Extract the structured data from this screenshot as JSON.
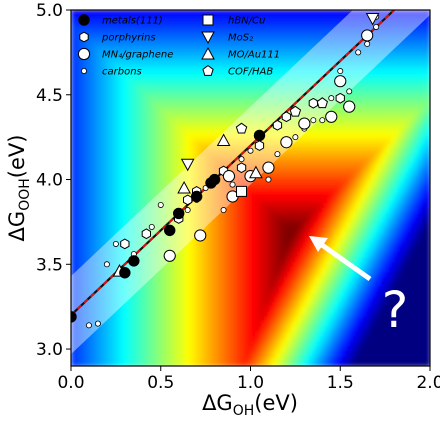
{
  "chart_data": {
    "type": "scatter",
    "xlabel": {
      "main": "ΔG",
      "sub": "OH",
      "unit": "(eV)"
    },
    "ylabel": {
      "main": "ΔG",
      "sub": "OOH",
      "unit": "(eV)"
    },
    "xlim": [
      0.0,
      2.0
    ],
    "ylim": [
      2.9,
      5.0
    ],
    "xticks": [
      "0.0",
      "0.5",
      "1.0",
      "1.5",
      "2.0"
    ],
    "yticks": [
      "3.0",
      "3.5",
      "4.0",
      "4.5",
      "5.0"
    ],
    "annotation": "?",
    "scaling_line": {
      "slope": 1.0,
      "intercept": 3.2
    },
    "legend": [
      {
        "label": "metals(111)",
        "marker": "filled-circle"
      },
      {
        "label": "porphyrins",
        "marker": "hexagon"
      },
      {
        "label": "MN₄/graphene",
        "marker": "large-circle"
      },
      {
        "label": "carbons",
        "marker": "small-circle"
      },
      {
        "label": "hBN/Cu",
        "marker": "square"
      },
      {
        "label": "MoS₂",
        "marker": "down-triangle"
      },
      {
        "label": "MO/Au111",
        "marker": "up-triangle"
      },
      {
        "label": "COF/HAB",
        "marker": "pentagon"
      }
    ],
    "series": [
      {
        "name": "metals(111)",
        "marker": "filled-circle",
        "points": [
          [
            0.0,
            3.19
          ],
          [
            0.3,
            3.45
          ],
          [
            0.35,
            3.52
          ],
          [
            0.6,
            3.8
          ],
          [
            0.7,
            3.9
          ],
          [
            0.78,
            3.98
          ],
          [
            1.05,
            4.26
          ],
          [
            0.55,
            3.7
          ],
          [
            0.8,
            4.0
          ]
        ]
      },
      {
        "name": "porphyrins",
        "marker": "hexagon",
        "points": [
          [
            0.3,
            3.62
          ],
          [
            0.42,
            3.68
          ],
          [
            0.6,
            3.77
          ],
          [
            0.65,
            3.88
          ],
          [
            0.85,
            4.05
          ],
          [
            0.95,
            4.07
          ],
          [
            1.05,
            4.2
          ],
          [
            1.2,
            4.37
          ],
          [
            1.35,
            4.45
          ],
          [
            1.15,
            4.32
          ],
          [
            0.7,
            3.93
          ],
          [
            1.5,
            4.48
          ]
        ]
      },
      {
        "name": "MN₄/graphene",
        "marker": "large-circle",
        "points": [
          [
            0.55,
            3.55
          ],
          [
            0.72,
            3.67
          ],
          [
            0.9,
            3.9
          ],
          [
            1.0,
            4.02
          ],
          [
            1.1,
            4.07
          ],
          [
            1.3,
            4.33
          ],
          [
            1.45,
            4.37
          ],
          [
            1.5,
            4.58
          ],
          [
            1.55,
            4.43
          ],
          [
            1.65,
            4.85
          ],
          [
            0.88,
            4.02
          ],
          [
            1.2,
            4.22
          ]
        ]
      },
      {
        "name": "carbons",
        "marker": "small-circle",
        "points": [
          [
            0.1,
            3.14
          ],
          [
            0.15,
            3.15
          ],
          [
            0.2,
            3.5
          ],
          [
            0.25,
            3.62
          ],
          [
            0.45,
            3.72
          ],
          [
            0.5,
            3.85
          ],
          [
            0.65,
            3.82
          ],
          [
            0.85,
            3.82
          ],
          [
            0.9,
            3.97
          ],
          [
            1.0,
            4.17
          ],
          [
            1.1,
            4.0
          ],
          [
            1.25,
            4.25
          ],
          [
            1.3,
            4.3
          ],
          [
            1.4,
            4.35
          ],
          [
            1.45,
            4.48
          ],
          [
            1.55,
            4.52
          ],
          [
            1.6,
            4.75
          ],
          [
            1.65,
            4.8
          ],
          [
            1.7,
            4.9
          ],
          [
            1.7,
            4.96
          ],
          [
            0.7,
            3.88
          ],
          [
            0.95,
            4.12
          ],
          [
            1.15,
            4.15
          ],
          [
            1.35,
            4.35
          ],
          [
            1.5,
            4.64
          ],
          [
            0.35,
            3.56
          ],
          [
            0.75,
            3.95
          ]
        ]
      },
      {
        "name": "hBN/Cu",
        "marker": "square",
        "points": [
          [
            0.95,
            3.93
          ]
        ]
      },
      {
        "name": "MoS₂",
        "marker": "down-triangle",
        "points": [
          [
            0.65,
            4.09
          ],
          [
            1.68,
            4.95
          ]
        ]
      },
      {
        "name": "MO/Au111",
        "marker": "up-triangle",
        "points": [
          [
            0.27,
            3.46
          ],
          [
            0.63,
            3.95
          ],
          [
            1.03,
            4.04
          ],
          [
            0.85,
            4.23
          ]
        ]
      },
      {
        "name": "COF/HAB",
        "marker": "pentagon",
        "points": [
          [
            0.95,
            4.3
          ],
          [
            1.25,
            4.4
          ],
          [
            1.4,
            4.45
          ]
        ]
      }
    ]
  }
}
